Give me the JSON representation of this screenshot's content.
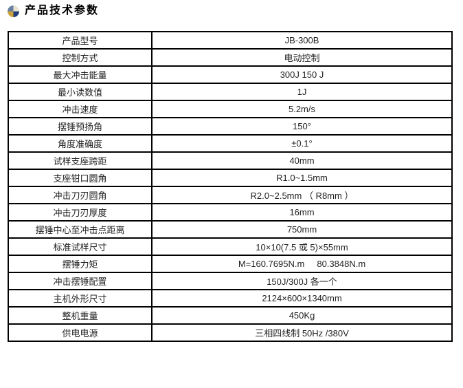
{
  "header": {
    "title": "产品技术参数",
    "icon": {
      "name": "sphere-bullet-icon",
      "colors": {
        "top_left": "#6b7fa3",
        "top_right": "#e9e5d0",
        "bottom_left": "#c9a23c",
        "bottom_right": "#223c7c"
      }
    }
  },
  "table": {
    "border_color": "#000000",
    "columns": [
      "parameter",
      "value"
    ],
    "rows": [
      {
        "label": "产品型号",
        "value": "JB-300B"
      },
      {
        "label": "控制方式",
        "value": "电动控制"
      },
      {
        "label": "最大冲击能量",
        "value": "300J 150 J"
      },
      {
        "label": "最小读数值",
        "value": "1J"
      },
      {
        "label": "冲击速度",
        "value": "5.2m/s"
      },
      {
        "label": "摆锤预扬角",
        "value": "150°"
      },
      {
        "label": "角度准确度",
        "value": "±0.1°"
      },
      {
        "label": "试样支座跨距",
        "value": "40mm"
      },
      {
        "label": "支座钳口圆角",
        "value": "R1.0~1.5mm"
      },
      {
        "label": "冲击刀刃圆角",
        "value": "R2.0~2.5mm （ R8mm ）"
      },
      {
        "label": "冲击刀刃厚度",
        "value": "16mm"
      },
      {
        "label": "摆锤中心至冲击点距离",
        "value": "750mm"
      },
      {
        "label": "标准试样尺寸",
        "value": "10×10(7.5 或 5)×55mm"
      },
      {
        "label": "摆锤力矩",
        "value": "M=160.7695N.m     80.3848N.m"
      },
      {
        "label": "冲击摆锤配置",
        "value": "150J/300J 各一个"
      },
      {
        "label": "主机外形尺寸",
        "value": "2124×600×1340mm"
      },
      {
        "label": "整机重量",
        "value": "450Kg"
      },
      {
        "label": "供电电源",
        "value": "三相四线制 50Hz /380V"
      }
    ]
  }
}
